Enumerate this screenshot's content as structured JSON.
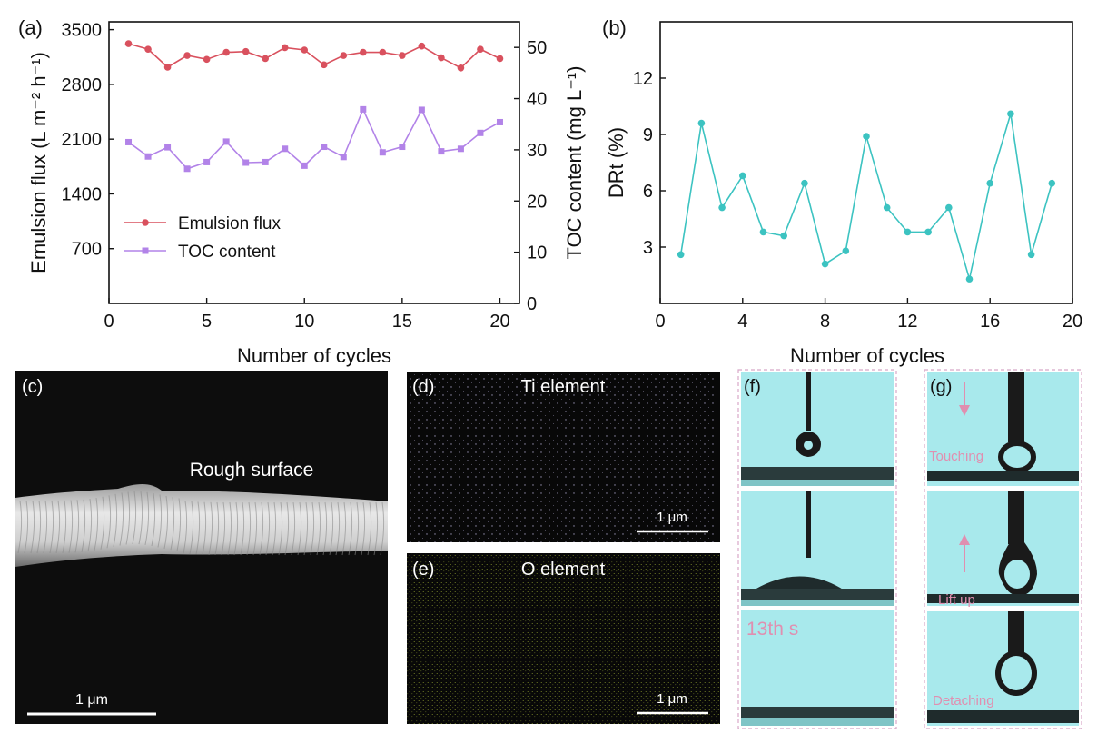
{
  "panel_labels": [
    "(a)",
    "(b)",
    "(c)",
    "(d)",
    "(e)",
    "(f)",
    "(g)"
  ],
  "micrographs": {
    "c": {
      "annotation": "Rough surface",
      "scale": "1 μm"
    },
    "d": {
      "title": "Ti element",
      "scale": "1 μm",
      "dot_color": "#b9b2d9"
    },
    "e": {
      "title": "O element",
      "scale": "1 μm",
      "dot_color": "#b5c93a"
    }
  },
  "droplets": {
    "f": {
      "time_label": "13th s"
    },
    "g": {
      "steps": [
        "Touching",
        "Lift up",
        "Detaching"
      ]
    }
  },
  "colors": {
    "flux": "#d9515e",
    "toc": "#b283e8",
    "drt": "#3cc3c1",
    "cyan_bg": "#a8e9ec",
    "frame": "#d8a8c8"
  },
  "chart_data": [
    {
      "type": "line",
      "panel": "(a)",
      "xlabel": "Number of cycles",
      "ylabel": "Emulsion flux (L m⁻² h⁻¹)",
      "y2label": "TOC content (mg L⁻¹)",
      "xlim": [
        0,
        21
      ],
      "ylim": [
        0,
        3600
      ],
      "y2lim": [
        0,
        55
      ],
      "xticks": [
        0,
        5,
        10,
        15,
        20
      ],
      "yticks": [
        700,
        1400,
        2100,
        2800,
        3500
      ],
      "y2ticks": [
        0,
        10,
        20,
        30,
        40,
        50
      ],
      "legend": "center-left",
      "x": [
        1,
        2,
        3,
        4,
        5,
        6,
        7,
        8,
        9,
        10,
        11,
        12,
        13,
        14,
        15,
        16,
        17,
        18,
        19,
        20
      ],
      "series": [
        {
          "name": "Emulsion flux",
          "axis": "left",
          "marker": "circle",
          "values": [
            3320,
            3250,
            3020,
            3170,
            3120,
            3210,
            3220,
            3130,
            3270,
            3240,
            3050,
            3170,
            3210,
            3210,
            3170,
            3290,
            3140,
            3010,
            3250,
            3130
          ]
        },
        {
          "name": "TOC content",
          "axis": "right",
          "marker": "square",
          "values": [
            31.5,
            28.7,
            30.5,
            26.3,
            27.6,
            31.6,
            27.5,
            27.6,
            30.2,
            26.9,
            30.6,
            28.6,
            37.9,
            29.5,
            30.6,
            37.8,
            29.7,
            30.2,
            33.3,
            35.4
          ]
        }
      ]
    },
    {
      "type": "line",
      "panel": "(b)",
      "xlabel": "Number of cycles",
      "ylabel": "DRt (%)",
      "xlim": [
        0,
        20
      ],
      "ylim": [
        0,
        15
      ],
      "xticks": [
        0,
        4,
        8,
        12,
        16,
        20
      ],
      "yticks": [
        3,
        6,
        9,
        12
      ],
      "x": [
        1,
        2,
        3,
        4,
        5,
        6,
        7,
        8,
        9,
        10,
        11,
        12,
        13,
        14,
        15,
        16,
        17,
        18,
        19
      ],
      "series": [
        {
          "values": [
            2.6,
            9.6,
            5.1,
            6.8,
            3.8,
            3.6,
            6.4,
            2.1,
            2.8,
            8.9,
            5.1,
            3.8,
            3.8,
            5.1,
            1.3,
            6.4,
            10.1,
            2.6,
            6.4
          ]
        }
      ]
    }
  ]
}
